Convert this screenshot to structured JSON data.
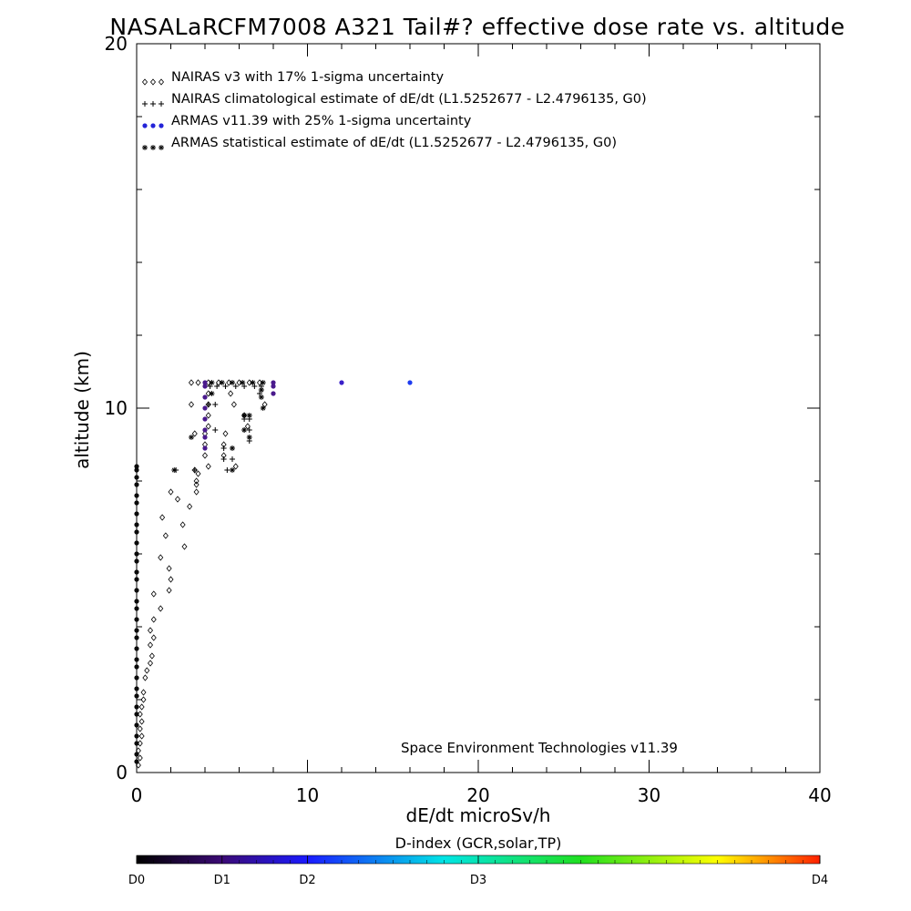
{
  "chart_data": {
    "type": "scatter",
    "title": "NASALaRCFM7008  A321 Tail#? effective dose rate vs. altitude",
    "xlabel": "dE/dt microSv/h",
    "ylabel": "altitude (km)",
    "xlim": [
      0,
      40
    ],
    "ylim": [
      0,
      20
    ],
    "x_ticks": [
      "0",
      "10",
      "20",
      "30",
      "40"
    ],
    "y_ticks": [
      "0",
      "10",
      "20"
    ],
    "grid": false,
    "legend_placement": "top-left",
    "annotation": "Space Environment Technologies v11.39",
    "series": [
      {
        "name": "NAIRAS v3 with 17% 1-sigma uncertainty",
        "marker": "diamond",
        "color": "#000000",
        "points": [
          [
            0.1,
            0.2
          ],
          [
            0.2,
            0.4
          ],
          [
            0.1,
            0.6
          ],
          [
            0.2,
            0.8
          ],
          [
            0.3,
            1.0
          ],
          [
            0.2,
            1.2
          ],
          [
            0.3,
            1.4
          ],
          [
            0.2,
            1.6
          ],
          [
            0.3,
            1.8
          ],
          [
            0.4,
            2.0
          ],
          [
            0.4,
            2.2
          ],
          [
            0.5,
            2.6
          ],
          [
            0.6,
            2.8
          ],
          [
            0.8,
            3.0
          ],
          [
            0.9,
            3.2
          ],
          [
            0.8,
            3.5
          ],
          [
            1.0,
            3.7
          ],
          [
            0.8,
            3.9
          ],
          [
            1.0,
            4.2
          ],
          [
            1.4,
            4.5
          ],
          [
            1.0,
            4.9
          ],
          [
            1.9,
            5.0
          ],
          [
            2.0,
            5.3
          ],
          [
            1.4,
            5.9
          ],
          [
            1.9,
            5.6
          ],
          [
            2.8,
            6.2
          ],
          [
            1.7,
            6.5
          ],
          [
            2.7,
            6.8
          ],
          [
            1.5,
            7.0
          ],
          [
            2.4,
            7.5
          ],
          [
            3.1,
            7.3
          ],
          [
            2.0,
            7.7
          ],
          [
            3.5,
            7.7
          ],
          [
            3.5,
            7.9
          ],
          [
            3.5,
            8.0
          ],
          [
            3.6,
            8.2
          ],
          [
            3.4,
            8.3
          ],
          [
            4.2,
            8.4
          ],
          [
            5.8,
            8.4
          ],
          [
            4.0,
            8.7
          ],
          [
            5.1,
            8.7
          ],
          [
            4.0,
            9.0
          ],
          [
            5.1,
            9.0
          ],
          [
            4.0,
            9.3
          ],
          [
            5.2,
            9.3
          ],
          [
            3.4,
            9.3
          ],
          [
            4.2,
            9.5
          ],
          [
            6.5,
            9.5
          ],
          [
            4.2,
            9.8
          ],
          [
            6.3,
            9.8
          ],
          [
            4.2,
            10.1
          ],
          [
            5.7,
            10.1
          ],
          [
            3.2,
            10.1
          ],
          [
            7.5,
            10.1
          ],
          [
            4.2,
            10.4
          ],
          [
            5.5,
            10.4
          ],
          [
            3.2,
            10.7
          ],
          [
            3.6,
            10.7
          ],
          [
            4.2,
            10.7
          ],
          [
            4.8,
            10.7
          ],
          [
            5.4,
            10.7
          ],
          [
            6.0,
            10.7
          ],
          [
            6.6,
            10.7
          ],
          [
            7.2,
            10.7
          ]
        ]
      },
      {
        "name": "NAIRAS climatological estimate of dE/dt (L1.5252677 - L2.4796135, G0)",
        "marker": "plus",
        "color": "#000000",
        "points": [
          [
            2.3,
            8.3
          ],
          [
            3.4,
            8.3
          ],
          [
            5.3,
            8.3
          ],
          [
            5.6,
            8.6
          ],
          [
            5.1,
            8.6
          ],
          [
            5.6,
            8.9
          ],
          [
            5.1,
            8.9
          ],
          [
            6.6,
            9.1
          ],
          [
            6.6,
            9.4
          ],
          [
            6.3,
            9.4
          ],
          [
            4.6,
            9.4
          ],
          [
            6.6,
            9.7
          ],
          [
            6.3,
            9.7
          ],
          [
            4.6,
            10.1
          ],
          [
            4.2,
            10.1
          ],
          [
            7.2,
            10.4
          ],
          [
            7.3,
            10.5
          ],
          [
            4.3,
            10.6
          ],
          [
            4.7,
            10.6
          ],
          [
            5.2,
            10.6
          ],
          [
            5.8,
            10.6
          ],
          [
            6.3,
            10.6
          ],
          [
            6.9,
            10.6
          ],
          [
            7.3,
            10.6
          ]
        ]
      },
      {
        "name": "ARMAS v11.39 with 25% 1-sigma uncertainty",
        "marker": "dot",
        "color": "#2424d8",
        "points": [
          [
            0.0,
            0.3
          ],
          [
            0.0,
            0.5
          ],
          [
            0.0,
            0.8
          ],
          [
            0.0,
            1.0
          ],
          [
            0.0,
            1.3
          ],
          [
            0.0,
            1.6
          ],
          [
            0.0,
            1.8
          ],
          [
            0.0,
            2.1
          ],
          [
            0.0,
            2.3
          ],
          [
            0.0,
            2.6
          ],
          [
            0.0,
            2.9
          ],
          [
            0.0,
            3.1
          ],
          [
            0.0,
            3.4
          ],
          [
            0.0,
            3.7
          ],
          [
            0.0,
            3.9
          ],
          [
            0.0,
            4.2
          ],
          [
            0.0,
            4.5
          ],
          [
            0.0,
            4.7
          ],
          [
            0.0,
            5.0
          ],
          [
            0.0,
            5.3
          ],
          [
            0.0,
            5.5
          ],
          [
            0.0,
            5.8
          ],
          [
            0.0,
            6.0
          ],
          [
            0.0,
            6.3
          ],
          [
            0.0,
            6.6
          ],
          [
            0.0,
            6.8
          ],
          [
            0.0,
            7.1
          ],
          [
            0.0,
            7.4
          ],
          [
            0.0,
            7.6
          ],
          [
            0.0,
            7.9
          ],
          [
            0.0,
            8.1
          ],
          [
            0.0,
            8.3
          ],
          [
            0.0,
            8.4
          ],
          [
            4.0,
            8.9
          ],
          [
            4.0,
            9.2
          ],
          [
            4.0,
            9.4
          ],
          [
            4.0,
            9.7
          ],
          [
            4.0,
            10.0
          ],
          [
            4.0,
            10.3
          ],
          [
            4.0,
            10.6
          ],
          [
            4.0,
            10.7
          ],
          [
            8.0,
            10.4
          ],
          [
            8.0,
            10.6
          ],
          [
            8.0,
            10.7
          ],
          [
            12.0,
            10.7
          ],
          [
            16.0,
            10.7
          ]
        ]
      },
      {
        "name": "ARMAS statistical estimate of dE/dt (L1.5252677 - L2.4796135, G0)",
        "marker": "asterisk",
        "color": "#000000",
        "points": [
          [
            2.2,
            8.3
          ],
          [
            3.2,
            9.2
          ],
          [
            5.6,
            8.3
          ],
          [
            5.6,
            8.9
          ],
          [
            6.6,
            9.2
          ],
          [
            6.3,
            9.4
          ],
          [
            6.6,
            9.8
          ],
          [
            6.3,
            9.8
          ],
          [
            7.4,
            10.0
          ],
          [
            7.3,
            10.3
          ],
          [
            7.3,
            10.5
          ],
          [
            4.4,
            10.4
          ],
          [
            4.4,
            10.7
          ],
          [
            5.0,
            10.7
          ],
          [
            5.6,
            10.7
          ],
          [
            6.2,
            10.7
          ],
          [
            6.8,
            10.7
          ],
          [
            7.4,
            10.7
          ]
        ]
      }
    ],
    "colorbar": {
      "title": "D-index (GCR,solar,TP)",
      "labels": [
        {
          "text": "D0",
          "pos": 0.0
        },
        {
          "text": "D1",
          "pos": 0.125
        },
        {
          "text": "D2",
          "pos": 0.25
        },
        {
          "text": "D3",
          "pos": 0.5
        },
        {
          "text": "D4",
          "pos": 1.0
        }
      ],
      "colors": [
        "#000000",
        "#3b0a75",
        "#1a1aff",
        "#00e5e5",
        "#20e020",
        "#ffff00",
        "#ff2000"
      ]
    }
  }
}
